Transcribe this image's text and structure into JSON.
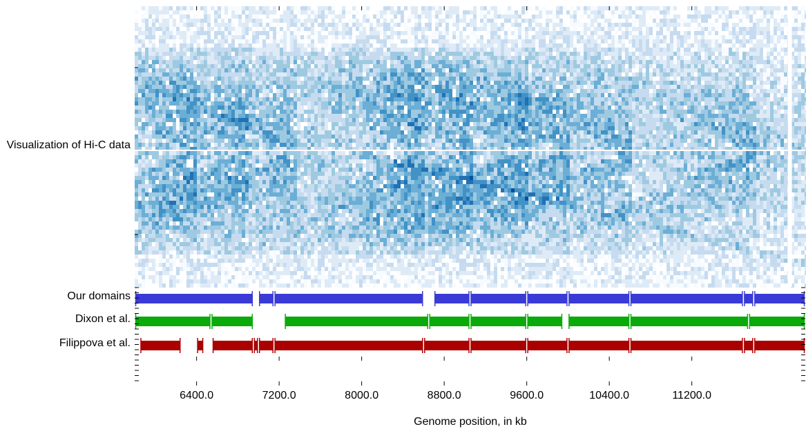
{
  "chart_data": {
    "type": "heatmap",
    "title": "",
    "xlabel": "Genome position, in kb",
    "xlim": [
      5800,
      12300
    ],
    "x_ticks": [
      6400,
      7200,
      8000,
      8800,
      9600,
      10400,
      11200
    ],
    "x_tick_labels": [
      "6400.0",
      "7200.0",
      "8000.0",
      "8800.0",
      "9600.0",
      "10400.0",
      "11200.0"
    ],
    "heatmap": {
      "label": "Visualization of Hi-C data",
      "colormap": [
        "#f7fbff",
        "#deebf7",
        "#c6dbef",
        "#9ecae1",
        "#6baed6",
        "#4292c6",
        "#2171b5",
        "#08519c",
        "#08306b"
      ],
      "domain_boundaries": [
        6400,
        6900,
        7350,
        8600,
        9050,
        9600,
        10000,
        10600,
        11800
      ],
      "gap_at": 12150
    },
    "series": [
      {
        "name": "Our domains",
        "color": "#3a3ad6",
        "segments": [
          [
            5800,
            6950
          ],
          [
            7000,
            7150
          ],
          [
            7150,
            8600
          ],
          [
            8700,
            9050
          ],
          [
            9050,
            9600
          ],
          [
            9600,
            10000
          ],
          [
            10000,
            10600
          ],
          [
            10600,
            11700
          ],
          [
            11700,
            11800
          ],
          [
            11800,
            12300
          ]
        ]
      },
      {
        "name": "Dixon et al.",
        "color": "#0aaa0a",
        "segments": [
          [
            5800,
            6540
          ],
          [
            6540,
            6950
          ],
          [
            7250,
            8650
          ],
          [
            8650,
            9050
          ],
          [
            9050,
            9600
          ],
          [
            9600,
            9950
          ],
          [
            10000,
            10600
          ],
          [
            10600,
            11750
          ],
          [
            11750,
            12300
          ]
        ]
      },
      {
        "name": "Filippova et al.",
        "color": "#aa0000",
        "segments": [
          [
            5850,
            6250
          ],
          [
            6400,
            6470
          ],
          [
            6550,
            6950
          ],
          [
            6950,
            7000
          ],
          [
            7000,
            7150
          ],
          [
            7150,
            8600
          ],
          [
            8600,
            9050
          ],
          [
            9050,
            9600
          ],
          [
            9600,
            10000
          ],
          [
            10000,
            10600
          ],
          [
            10600,
            11700
          ],
          [
            11700,
            11800
          ],
          [
            11800,
            12300
          ]
        ]
      }
    ]
  }
}
